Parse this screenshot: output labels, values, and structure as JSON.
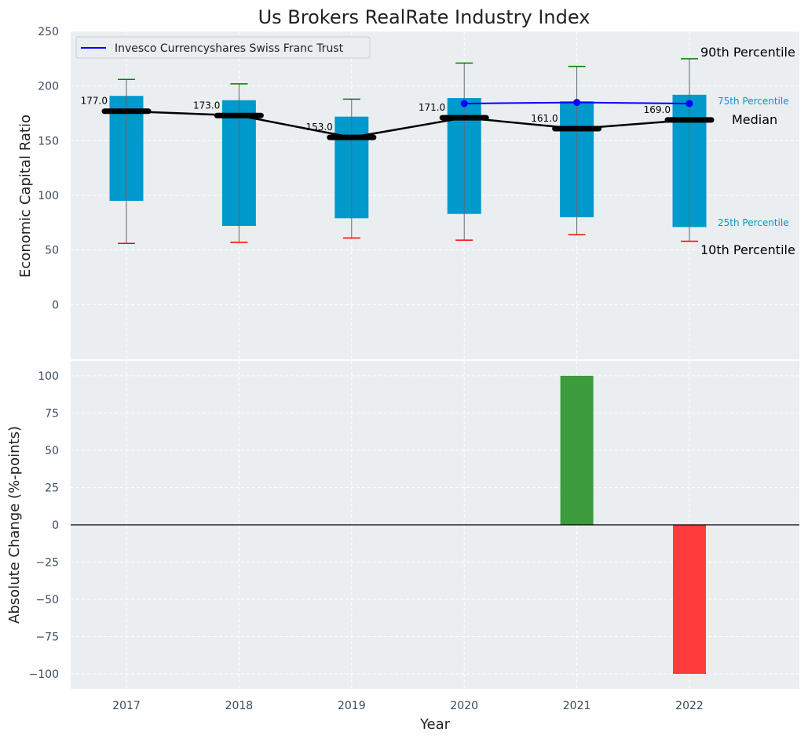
{
  "chart_data": [
    {
      "type": "box",
      "title": "Us Brokers RealRate Industry Index",
      "ylabel": "Economic Capital Ratio",
      "ylim": [
        -50,
        250
      ],
      "yticks": [
        0,
        50,
        100,
        150,
        200,
        250
      ],
      "categories": [
        "2017",
        "2018",
        "2019",
        "2020",
        "2021",
        "2022"
      ],
      "p10": [
        56,
        57,
        61,
        59,
        64,
        58
      ],
      "p25": [
        95,
        72,
        79,
        83,
        80,
        71
      ],
      "median": [
        177,
        173,
        153,
        171,
        161,
        169
      ],
      "median_labels": [
        "177.0",
        "173.0",
        "153.0",
        "171.0",
        "161.0",
        "169.0"
      ],
      "p75": [
        191,
        187,
        172,
        189,
        186,
        192
      ],
      "p90": [
        206,
        202,
        188,
        221,
        218,
        225
      ],
      "company_series": {
        "name": "Invesco Currencyshares Swiss Franc Trust",
        "categories": [
          "2020",
          "2021",
          "2022"
        ],
        "values": [
          184,
          185,
          184
        ]
      },
      "annotations": {
        "p90": "90th Percentile",
        "p75": "75th Percentile",
        "median": "Median",
        "p25": "25th Percentile",
        "p10": "10th Percentile"
      },
      "legend_position": "top-left",
      "grid": true,
      "colors": {
        "box": "#0099cc",
        "median": "#000000",
        "company": "#0000ff",
        "p90_cap": "#008000",
        "p10_cap": "#ff0000",
        "background": "#eaeef0"
      }
    },
    {
      "type": "bar",
      "ylabel": "Absolute Change (%-points)",
      "xlabel": "Year",
      "ylim": [
        -110,
        110
      ],
      "yticks": [
        -100,
        -75,
        -50,
        -25,
        0,
        25,
        50,
        75,
        100
      ],
      "ytick_labels": [
        "−100",
        "−75",
        "−50",
        "−25",
        "0",
        "25",
        "50",
        "75",
        "100"
      ],
      "categories": [
        "2017",
        "2018",
        "2019",
        "2020",
        "2021",
        "2022"
      ],
      "values": [
        0,
        0,
        0,
        0,
        100,
        -100
      ],
      "grid": true,
      "colors": {
        "positive": "#3c9c3c",
        "negative": "#ff3c3c",
        "zero_line": "#000000"
      }
    }
  ]
}
